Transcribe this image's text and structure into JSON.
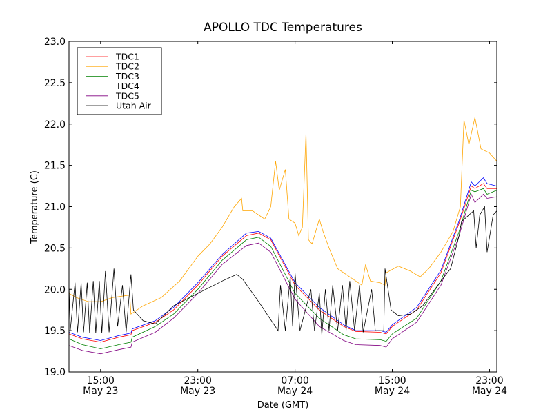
{
  "chart_data": {
    "type": "line",
    "title": "APOLLO TDC Temperatures",
    "xlabel": "Date (GMT)",
    "ylabel": "Temperature (C)",
    "x_unit": "hours since May 23 00:00 GMT",
    "xlim": [
      12.4,
      47.6
    ],
    "ylim": [
      19.0,
      23.0
    ],
    "grid": false,
    "legend_position": "top-left",
    "yticks": [
      19.0,
      19.5,
      20.0,
      20.5,
      21.0,
      21.5,
      22.0,
      22.5,
      23.0
    ],
    "ytick_labels": [
      "19.0",
      "19.5",
      "20.0",
      "20.5",
      "21.0",
      "21.5",
      "22.0",
      "22.5",
      "23.0"
    ],
    "xticks": [
      {
        "x": 15,
        "time": "15:00",
        "date": "May 23"
      },
      {
        "x": 23,
        "time": "23:00",
        "date": "May 23"
      },
      {
        "x": 31,
        "time": "07:00",
        "date": "May 24"
      },
      {
        "x": 39,
        "time": "15:00",
        "date": "May 24"
      },
      {
        "x": 47,
        "time": "23:00",
        "date": "May 24"
      }
    ],
    "series": [
      {
        "name": "TDC1",
        "color": "#ff0000",
        "points": [
          [
            12.4,
            19.46
          ],
          [
            13.5,
            19.4
          ],
          [
            15,
            19.36
          ],
          [
            16.5,
            19.42
          ],
          [
            17.5,
            19.45
          ],
          [
            17.6,
            19.5
          ],
          [
            19.5,
            19.6
          ],
          [
            21,
            19.75
          ],
          [
            23,
            20.05
          ],
          [
            25,
            20.4
          ],
          [
            27,
            20.65
          ],
          [
            28,
            20.68
          ],
          [
            29,
            20.6
          ],
          [
            31,
            20.05
          ],
          [
            33,
            19.75
          ],
          [
            35,
            19.55
          ],
          [
            36,
            19.49
          ],
          [
            38,
            19.48
          ],
          [
            38.5,
            19.46
          ],
          [
            39,
            19.55
          ],
          [
            41,
            19.75
          ],
          [
            43,
            20.2
          ],
          [
            44.5,
            20.8
          ],
          [
            45.5,
            21.25
          ],
          [
            45.8,
            21.22
          ],
          [
            46.5,
            21.28
          ],
          [
            46.8,
            21.22
          ],
          [
            47.6,
            21.22
          ]
        ]
      },
      {
        "name": "TDC2",
        "color": "#ffa500",
        "points": [
          [
            12.4,
            19.95
          ],
          [
            13,
            19.9
          ],
          [
            14,
            19.85
          ],
          [
            15,
            19.85
          ],
          [
            16,
            19.9
          ],
          [
            17.4,
            19.93
          ],
          [
            17.5,
            19.7
          ],
          [
            18.5,
            19.8
          ],
          [
            20,
            19.9
          ],
          [
            21.5,
            20.1
          ],
          [
            23,
            20.4
          ],
          [
            24,
            20.55
          ],
          [
            25,
            20.75
          ],
          [
            26,
            21.0
          ],
          [
            26.6,
            21.1
          ],
          [
            26.7,
            20.95
          ],
          [
            27.5,
            20.95
          ],
          [
            28.5,
            20.85
          ],
          [
            29,
            21.0
          ],
          [
            29.4,
            21.55
          ],
          [
            29.7,
            21.2
          ],
          [
            30.2,
            21.45
          ],
          [
            30.5,
            20.85
          ],
          [
            31,
            20.8
          ],
          [
            31.3,
            20.65
          ],
          [
            31.6,
            20.75
          ],
          [
            31.9,
            21.9
          ],
          [
            32.1,
            20.6
          ],
          [
            32.4,
            20.55
          ],
          [
            33,
            20.85
          ],
          [
            33.3,
            20.7
          ],
          [
            33.8,
            20.5
          ],
          [
            34.5,
            20.25
          ],
          [
            35.5,
            20.15
          ],
          [
            36.5,
            20.05
          ],
          [
            36.8,
            20.3
          ],
          [
            37.2,
            20.1
          ],
          [
            38,
            20.08
          ],
          [
            38.4,
            20.05
          ],
          [
            38.5,
            20.2
          ],
          [
            39.5,
            20.28
          ],
          [
            40.5,
            20.22
          ],
          [
            41.3,
            20.15
          ],
          [
            42,
            20.25
          ],
          [
            43,
            20.45
          ],
          [
            44,
            20.7
          ],
          [
            44.6,
            21.0
          ],
          [
            44.9,
            22.05
          ],
          [
            45.3,
            21.75
          ],
          [
            45.8,
            22.08
          ],
          [
            46.3,
            21.7
          ],
          [
            47,
            21.65
          ],
          [
            47.6,
            21.55
          ]
        ]
      },
      {
        "name": "TDC3",
        "color": "#008000",
        "points": [
          [
            12.4,
            19.4
          ],
          [
            13.5,
            19.33
          ],
          [
            15,
            19.28
          ],
          [
            16.5,
            19.33
          ],
          [
            17.5,
            19.36
          ],
          [
            17.6,
            19.42
          ],
          [
            19.5,
            19.55
          ],
          [
            21,
            19.7
          ],
          [
            23,
            20.0
          ],
          [
            25,
            20.35
          ],
          [
            27,
            20.6
          ],
          [
            28,
            20.63
          ],
          [
            29,
            20.52
          ],
          [
            31,
            19.95
          ],
          [
            33,
            19.65
          ],
          [
            35,
            19.45
          ],
          [
            36,
            19.4
          ],
          [
            38,
            19.39
          ],
          [
            38.5,
            19.37
          ],
          [
            39,
            19.46
          ],
          [
            41,
            19.65
          ],
          [
            43,
            20.1
          ],
          [
            44.5,
            20.7
          ],
          [
            45.5,
            21.2
          ],
          [
            45.8,
            21.18
          ],
          [
            46.5,
            21.22
          ],
          [
            46.8,
            21.15
          ],
          [
            47.6,
            21.2
          ]
        ]
      },
      {
        "name": "TDC4",
        "color": "#0000ff",
        "points": [
          [
            12.4,
            19.48
          ],
          [
            13.5,
            19.42
          ],
          [
            15,
            19.38
          ],
          [
            16.5,
            19.44
          ],
          [
            17.5,
            19.47
          ],
          [
            17.6,
            19.52
          ],
          [
            19.5,
            19.62
          ],
          [
            21,
            19.78
          ],
          [
            23,
            20.08
          ],
          [
            25,
            20.42
          ],
          [
            27,
            20.68
          ],
          [
            28,
            20.7
          ],
          [
            29,
            20.62
          ],
          [
            31,
            20.08
          ],
          [
            33,
            19.78
          ],
          [
            35,
            19.57
          ],
          [
            36,
            19.5
          ],
          [
            38,
            19.5
          ],
          [
            38.5,
            19.48
          ],
          [
            39,
            19.57
          ],
          [
            41,
            19.78
          ],
          [
            43,
            20.23
          ],
          [
            44.5,
            20.83
          ],
          [
            45.5,
            21.3
          ],
          [
            45.8,
            21.25
          ],
          [
            46.5,
            21.35
          ],
          [
            46.8,
            21.28
          ],
          [
            47.6,
            21.25
          ]
        ]
      },
      {
        "name": "TDC5",
        "color": "#800080",
        "points": [
          [
            12.4,
            19.32
          ],
          [
            13.5,
            19.26
          ],
          [
            15,
            19.22
          ],
          [
            16.5,
            19.27
          ],
          [
            17.5,
            19.3
          ],
          [
            17.6,
            19.36
          ],
          [
            19.5,
            19.48
          ],
          [
            21,
            19.65
          ],
          [
            23,
            19.95
          ],
          [
            25,
            20.3
          ],
          [
            27,
            20.53
          ],
          [
            28,
            20.56
          ],
          [
            29,
            20.45
          ],
          [
            31,
            19.88
          ],
          [
            33,
            19.55
          ],
          [
            35,
            19.38
          ],
          [
            36,
            19.33
          ],
          [
            38,
            19.32
          ],
          [
            38.5,
            19.3
          ],
          [
            39,
            19.4
          ],
          [
            41,
            19.6
          ],
          [
            43,
            20.05
          ],
          [
            44.5,
            20.65
          ],
          [
            45.5,
            21.15
          ],
          [
            45.8,
            21.05
          ],
          [
            46.5,
            21.15
          ],
          [
            46.8,
            21.1
          ],
          [
            47.6,
            21.12
          ]
        ]
      },
      {
        "name": "Utah Air",
        "color": "#000000",
        "points": [
          [
            12.4,
            20.05
          ],
          [
            12.5,
            19.5
          ],
          [
            12.9,
            20.08
          ],
          [
            13.1,
            19.48
          ],
          [
            13.4,
            20.08
          ],
          [
            13.6,
            19.48
          ],
          [
            13.9,
            20.08
          ],
          [
            14.1,
            19.47
          ],
          [
            14.4,
            20.1
          ],
          [
            14.6,
            19.47
          ],
          [
            14.9,
            20.1
          ],
          [
            15.1,
            19.47
          ],
          [
            15.4,
            20.22
          ],
          [
            15.7,
            19.48
          ],
          [
            16.1,
            20.25
          ],
          [
            16.4,
            19.55
          ],
          [
            16.8,
            20.05
          ],
          [
            17.1,
            19.48
          ],
          [
            17.5,
            20.18
          ],
          [
            17.7,
            19.75
          ],
          [
            18.5,
            19.62
          ],
          [
            19.5,
            19.58
          ],
          [
            21,
            19.8
          ],
          [
            23,
            19.95
          ],
          [
            25,
            20.1
          ],
          [
            26.2,
            20.18
          ],
          [
            26.7,
            20.12
          ],
          [
            28,
            19.85
          ],
          [
            29.6,
            19.5
          ],
          [
            29.8,
            20.05
          ],
          [
            30.2,
            19.5
          ],
          [
            30.6,
            20.15
          ],
          [
            30.8,
            19.55
          ],
          [
            31,
            20.2
          ],
          [
            31.4,
            19.5
          ],
          [
            32.3,
            20.0
          ],
          [
            32.6,
            19.5
          ],
          [
            33,
            19.95
          ],
          [
            33.2,
            19.45
          ],
          [
            33.5,
            20.0
          ],
          [
            33.8,
            19.5
          ],
          [
            34.1,
            20.05
          ],
          [
            34.5,
            19.5
          ],
          [
            34.9,
            20.05
          ],
          [
            35.2,
            19.5
          ],
          [
            35.5,
            20.1
          ],
          [
            35.9,
            19.5
          ],
          [
            36.3,
            20.05
          ],
          [
            36.6,
            19.48
          ],
          [
            37.3,
            20.0
          ],
          [
            37.6,
            19.5
          ],
          [
            38.3,
            19.5
          ],
          [
            38.4,
            20.25
          ],
          [
            38.9,
            19.75
          ],
          [
            39.5,
            19.68
          ],
          [
            40.5,
            19.7
          ],
          [
            41.5,
            19.8
          ],
          [
            43,
            20.1
          ],
          [
            43.8,
            20.25
          ],
          [
            44.5,
            20.65
          ],
          [
            44.7,
            20.82
          ],
          [
            45.7,
            20.95
          ],
          [
            45.9,
            20.5
          ],
          [
            46.2,
            20.9
          ],
          [
            46.6,
            21.0
          ],
          [
            46.8,
            20.45
          ],
          [
            47.3,
            20.9
          ],
          [
            47.6,
            20.95
          ]
        ]
      }
    ]
  }
}
